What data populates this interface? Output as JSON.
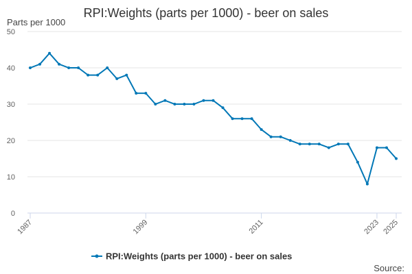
{
  "colors": {
    "series": "#0077b6",
    "grid": "#e6e6e6",
    "axis": "#ccd6eb",
    "text": "#333333"
  },
  "source_text": "Source:",
  "chart_data": {
    "type": "line",
    "title": "RPI:Weights (parts per 1000) - beer on sales",
    "unit_label": "Parts per 1000",
    "xlabel": "",
    "ylabel": "",
    "ylim": [
      0,
      50
    ],
    "y_ticks": [
      0,
      10,
      20,
      30,
      40,
      50
    ],
    "x_ticks": [
      "1987",
      "1999",
      "2011",
      "2023",
      "2025"
    ],
    "grid": true,
    "legend": "bottom",
    "categories": [
      "1987",
      "1988",
      "1989",
      "1990",
      "1991",
      "1992",
      "1993",
      "1994",
      "1995",
      "1996",
      "1997",
      "1998",
      "1999",
      "2000",
      "2001",
      "2002",
      "2003",
      "2004",
      "2005",
      "2006",
      "2007",
      "2008",
      "2009",
      "2010",
      "2011",
      "2012",
      "2013",
      "2014",
      "2015",
      "2016",
      "2017",
      "2018",
      "2019",
      "2020",
      "2021",
      "2022",
      "2023",
      "2024",
      "2025"
    ],
    "series": [
      {
        "name": "RPI:Weights (parts per 1000) - beer on sales",
        "values": [
          40,
          41,
          44,
          41,
          40,
          40,
          38,
          38,
          40,
          37,
          38,
          33,
          33,
          30,
          31,
          30,
          30,
          30,
          31,
          31,
          29,
          26,
          26,
          26,
          23,
          21,
          21,
          20,
          19,
          19,
          19,
          18,
          19,
          19,
          14,
          8,
          18,
          18,
          15
        ]
      }
    ]
  }
}
